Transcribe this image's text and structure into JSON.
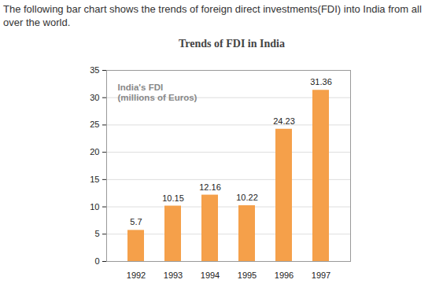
{
  "intro": "The following bar chart shows the trends of foreign direct investments(FDI) into India from all over the world.",
  "chart_data": {
    "type": "bar",
    "title": "Trends of FDI in India",
    "annotation": "India's FDI\n(millions of Euros)",
    "categories": [
      "1992",
      "1993",
      "1994",
      "1995",
      "1996",
      "1997"
    ],
    "values": [
      5.7,
      10.15,
      12.16,
      10.22,
      24.23,
      31.36
    ],
    "color": "#f5a04a",
    "ylim": [
      0,
      35
    ],
    "yticks": [
      0,
      5,
      10,
      15,
      20,
      25,
      30,
      35
    ],
    "grid": true,
    "data_labels": true
  }
}
